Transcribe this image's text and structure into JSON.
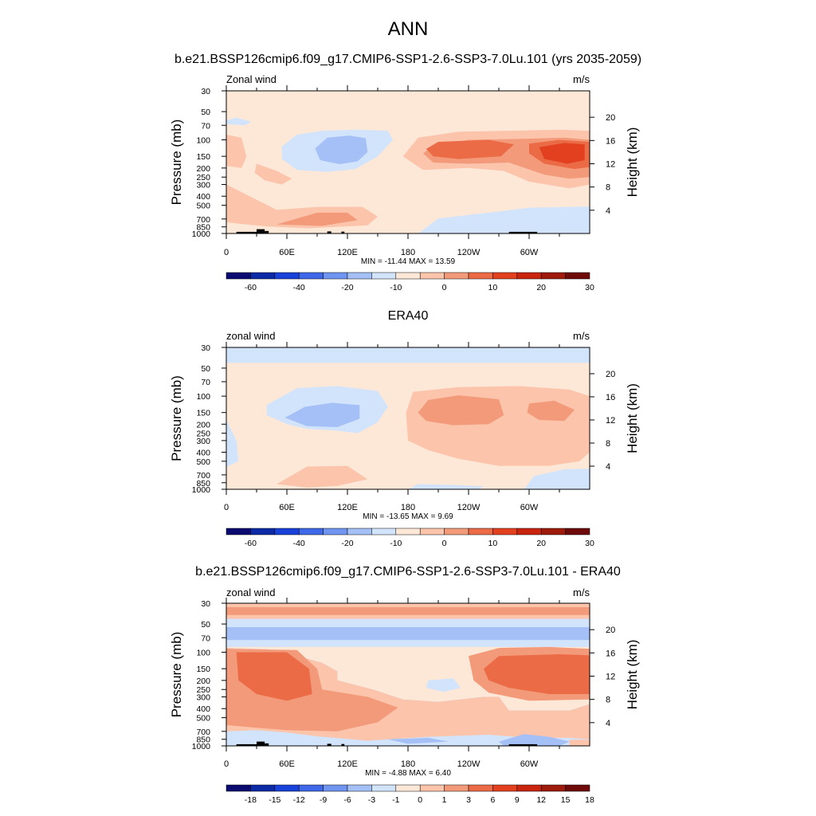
{
  "figure": {
    "title": "ANN",
    "panel1_title": "b.e21.BSSP126cmip6.f09_g17.CMIP6-SSP1-2.6-SSP3-7.0Lu.101 (yrs 2035-2059)",
    "panel2_title": "ERA40",
    "panel3_title": "b.e21.BSSP126cmip6.f09_g17.CMIP6-SSP1-2.6-SSP3-7.0Lu.101 - ERA40"
  },
  "chart_data": [
    {
      "type": "heatmap",
      "variable_label": "Zonal wind",
      "units": "m/s",
      "ylabel": "Pressure (mb)",
      "ylabel_right": "Height (km)",
      "x_ticks": [
        "0",
        "60E",
        "120E",
        "180",
        "120W",
        "60W"
      ],
      "x_tick_values": [
        0,
        60,
        120,
        180,
        240,
        300
      ],
      "xlim": [
        0,
        360
      ],
      "y_ticks": [
        "30",
        "50",
        "70",
        "100",
        "150",
        "200",
        "250",
        "300",
        "400",
        "500",
        "700",
        "850",
        "1000"
      ],
      "y_tick_values": [
        30,
        50,
        70,
        100,
        150,
        200,
        250,
        300,
        400,
        500,
        700,
        850,
        1000
      ],
      "ylim": [
        1000,
        30
      ],
      "y_scale": "log",
      "height_ticks": [
        "4",
        "8",
        "12",
        "16",
        "20"
      ],
      "height_tick_values": [
        4,
        8,
        12,
        16,
        20
      ],
      "stats": "MIN = -11.44  MAX =  13.59",
      "colorbar_labels": [
        "-60",
        "-40",
        "-20",
        "-10",
        "0",
        "10",
        "20",
        "30"
      ],
      "colorbar_colors": [
        "#0a0a70",
        "#0c2aa5",
        "#1741d8",
        "#3e68e8",
        "#6f95f0",
        "#a4c0f6",
        "#d2e4fb",
        "#fde8d8",
        "#fbc4ab",
        "#f29a79",
        "#ec6b47",
        "#e2401e",
        "#c8240e",
        "#9e1a0a",
        "#6e0a0a"
      ]
    },
    {
      "type": "heatmap",
      "variable_label": "zonal wind",
      "units": "m/s",
      "ylabel": "Pressure (mb)",
      "ylabel_right": "Height (km)",
      "x_ticks": [
        "0",
        "60E",
        "120E",
        "180",
        "120W",
        "60W"
      ],
      "x_tick_values": [
        0,
        60,
        120,
        180,
        240,
        300
      ],
      "xlim": [
        0,
        360
      ],
      "y_ticks": [
        "30",
        "50",
        "70",
        "100",
        "150",
        "200",
        "250",
        "300",
        "400",
        "500",
        "700",
        "850",
        "1000"
      ],
      "y_tick_values": [
        30,
        50,
        70,
        100,
        150,
        200,
        250,
        300,
        400,
        500,
        700,
        850,
        1000
      ],
      "ylim": [
        1000,
        30
      ],
      "y_scale": "log",
      "height_ticks": [
        "4",
        "8",
        "12",
        "16",
        "20"
      ],
      "height_tick_values": [
        4,
        8,
        12,
        16,
        20
      ],
      "stats": "MIN = -13.65  MAX =   9.69",
      "colorbar_labels": [
        "-60",
        "-40",
        "-20",
        "-10",
        "0",
        "10",
        "20",
        "30"
      ],
      "colorbar_colors": [
        "#0a0a70",
        "#0c2aa5",
        "#1741d8",
        "#3e68e8",
        "#6f95f0",
        "#a4c0f6",
        "#d2e4fb",
        "#fde8d8",
        "#fbc4ab",
        "#f29a79",
        "#ec6b47",
        "#e2401e",
        "#c8240e",
        "#9e1a0a",
        "#6e0a0a"
      ]
    },
    {
      "type": "heatmap",
      "variable_label": "zonal wind",
      "units": "m/s",
      "ylabel": "Pressure (mb)",
      "ylabel_right": "Height (km)",
      "x_ticks": [
        "0",
        "60E",
        "120E",
        "180",
        "120W",
        "60W"
      ],
      "x_tick_values": [
        0,
        60,
        120,
        180,
        240,
        300
      ],
      "xlim": [
        0,
        360
      ],
      "y_ticks": [
        "30",
        "50",
        "70",
        "100",
        "150",
        "200",
        "250",
        "300",
        "400",
        "500",
        "700",
        "850",
        "1000"
      ],
      "y_tick_values": [
        30,
        50,
        70,
        100,
        150,
        200,
        250,
        300,
        400,
        500,
        700,
        850,
        1000
      ],
      "ylim": [
        1000,
        30
      ],
      "y_scale": "log",
      "height_ticks": [
        "4",
        "8",
        "12",
        "16",
        "20"
      ],
      "height_tick_values": [
        4,
        8,
        12,
        16,
        20
      ],
      "stats": "MIN =  -4.88  MAX =   6.40",
      "colorbar_labels": [
        "-18",
        "-15",
        "-12",
        "-9",
        "-6",
        "-3",
        "-1",
        "0",
        "1",
        "3",
        "6",
        "9",
        "12",
        "15",
        "18"
      ],
      "colorbar_colors": [
        "#0a0a70",
        "#0c2aa5",
        "#1741d8",
        "#3e68e8",
        "#6f95f0",
        "#a4c0f6",
        "#d2e4fb",
        "#fde8d8",
        "#fbc4ab",
        "#f29a79",
        "#ec6b47",
        "#e2401e",
        "#c8240e",
        "#9e1a0a",
        "#6e0a0a"
      ]
    }
  ]
}
